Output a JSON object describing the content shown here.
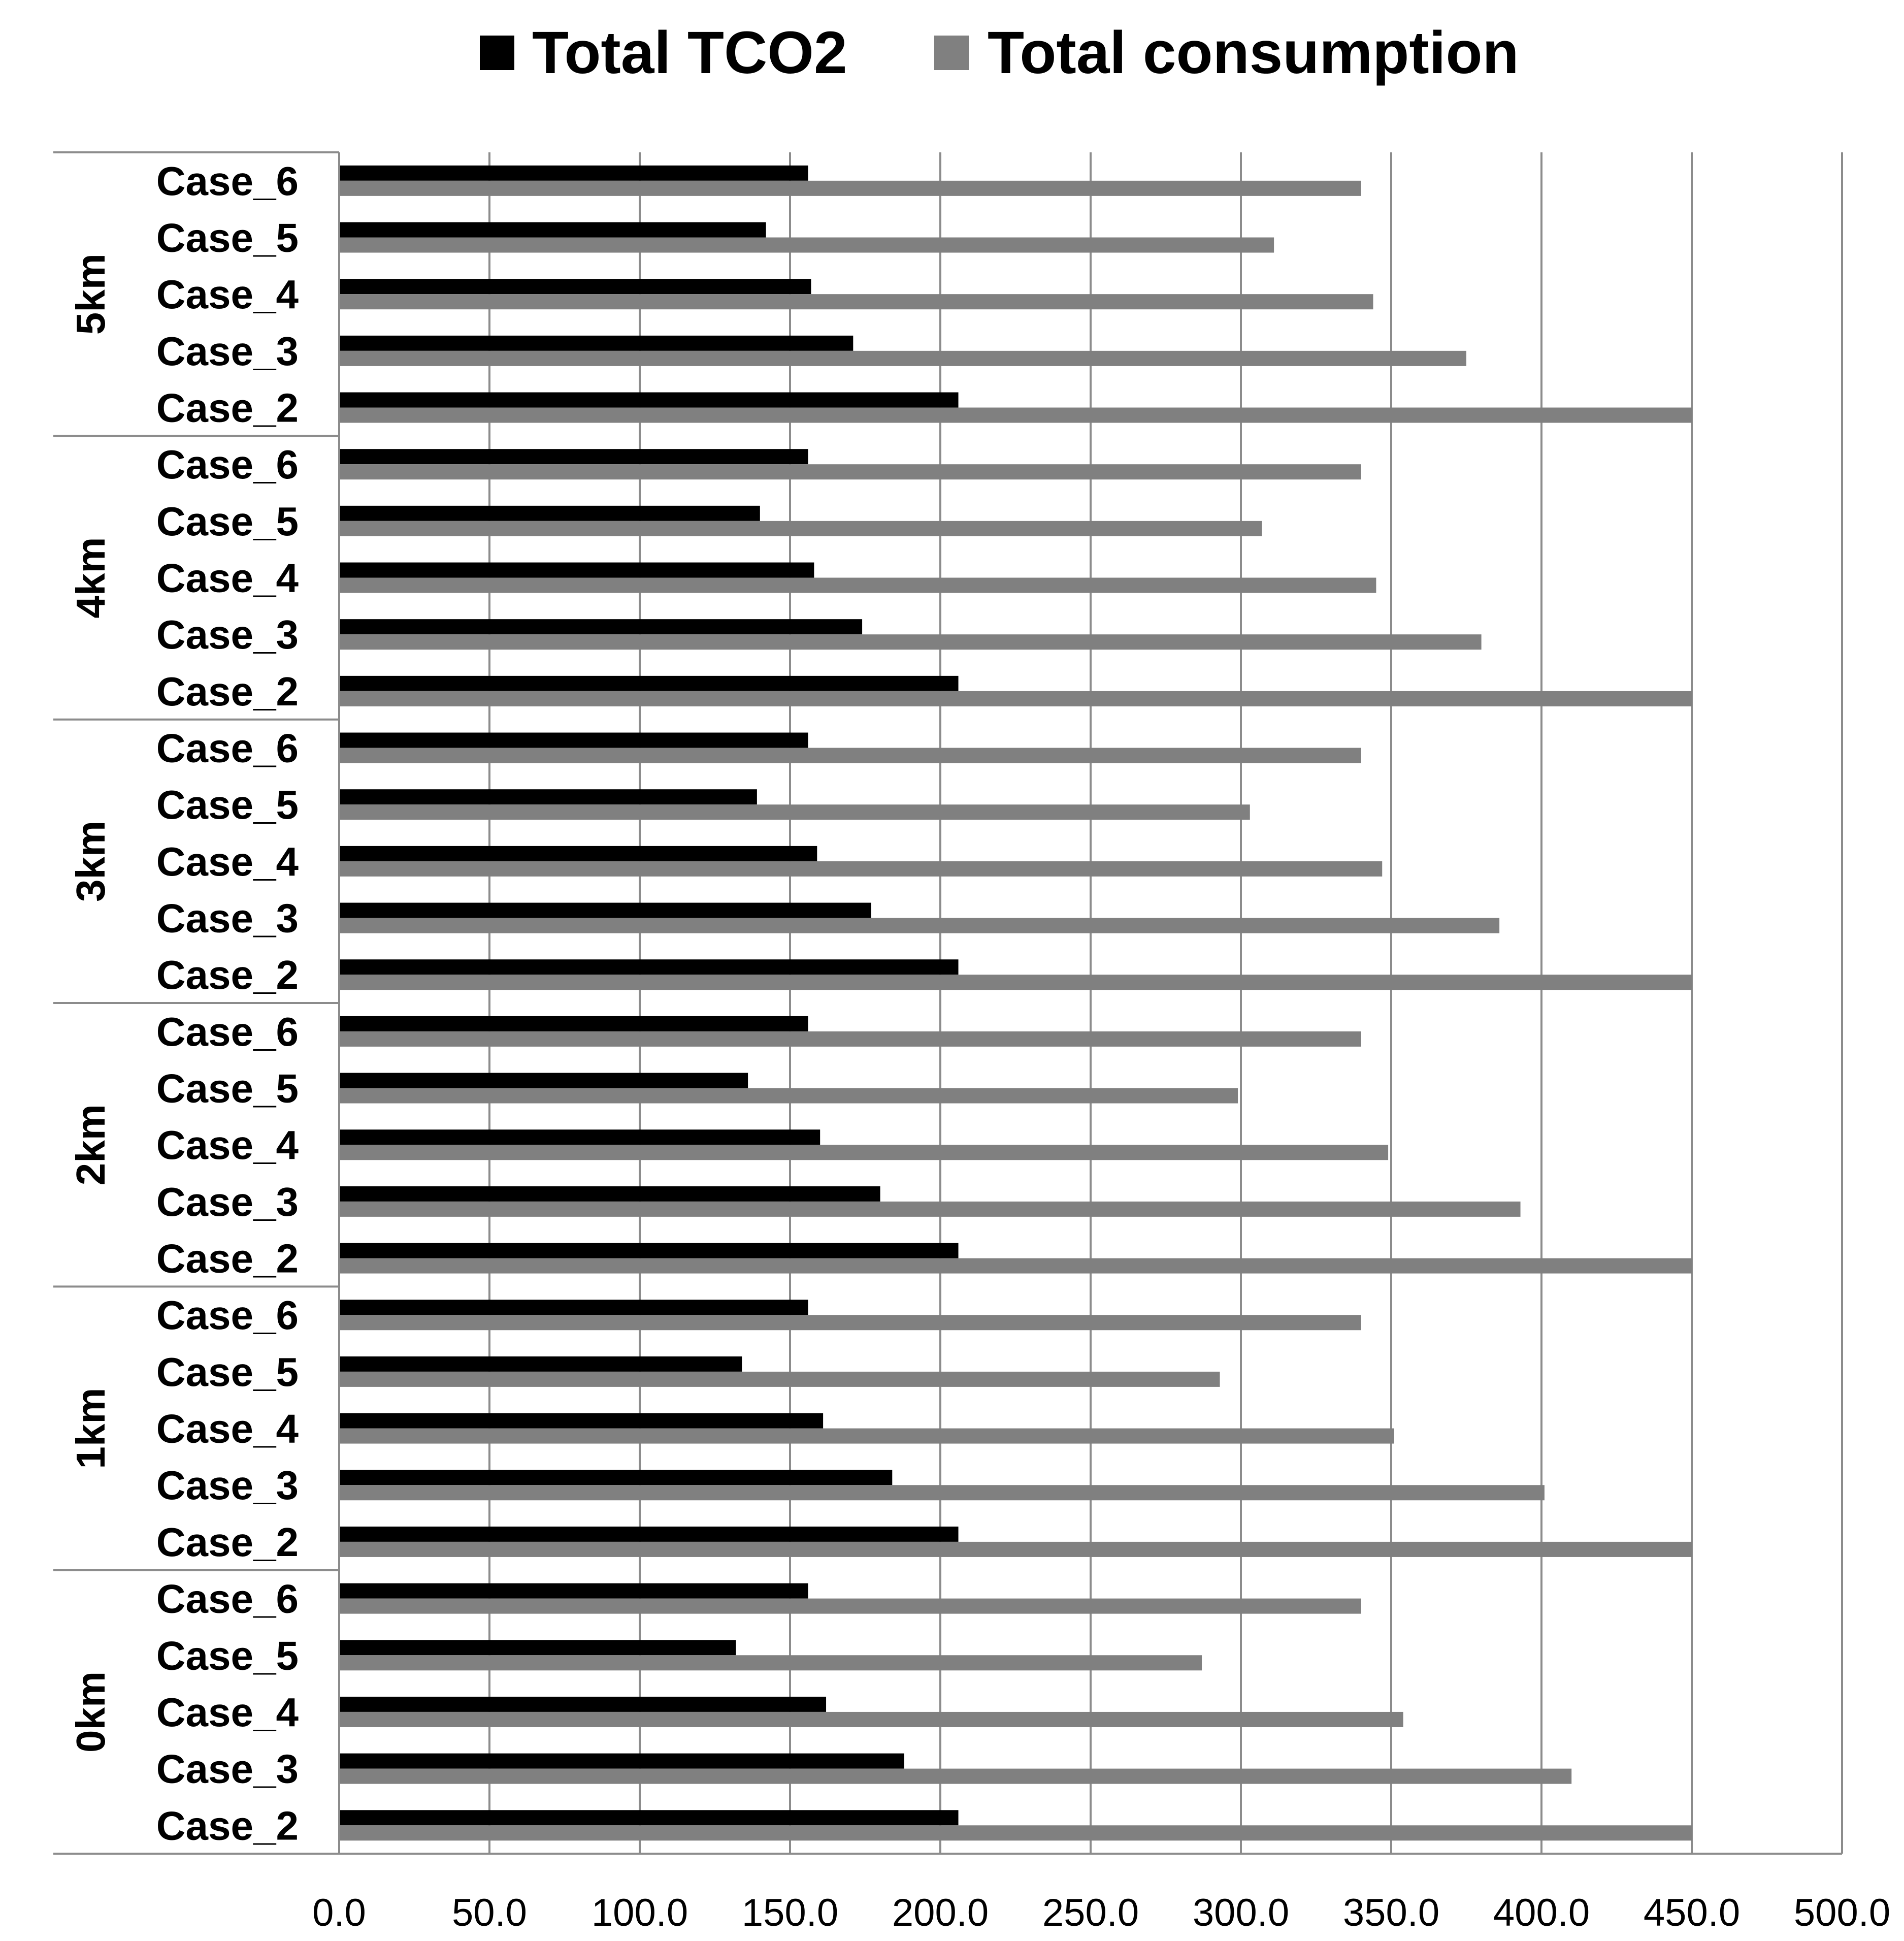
{
  "chart_data": {
    "type": "bar",
    "orientation": "horizontal",
    "title": "",
    "xlabel": "",
    "ylabel": "",
    "xlim": [
      0,
      500
    ],
    "x_ticks": [
      "0.0",
      "50.0",
      "100.0",
      "150.0",
      "200.0",
      "250.0",
      "300.0",
      "350.0",
      "400.0",
      "450.0",
      "500.0"
    ],
    "grid": "vertical",
    "legend_position": "top-center",
    "series": [
      {
        "name": "Total TCO2",
        "color": "#000000"
      },
      {
        "name": "Total consumption",
        "color": "#808080"
      }
    ],
    "groups": [
      {
        "label": "5km",
        "cases": [
          {
            "label": "Case_6",
            "values": [
              156,
              340
            ]
          },
          {
            "label": "Case_5",
            "values": [
              142,
              311
            ]
          },
          {
            "label": "Case_4",
            "values": [
              157,
              344
            ]
          },
          {
            "label": "Case_3",
            "values": [
              171,
              375
            ]
          },
          {
            "label": "Case_2",
            "values": [
              206,
              450
            ]
          }
        ]
      },
      {
        "label": "4km",
        "cases": [
          {
            "label": "Case_6",
            "values": [
              156,
              340
            ]
          },
          {
            "label": "Case_5",
            "values": [
              140,
              307
            ]
          },
          {
            "label": "Case_4",
            "values": [
              158,
              345
            ]
          },
          {
            "label": "Case_3",
            "values": [
              174,
              380
            ]
          },
          {
            "label": "Case_2",
            "values": [
              206,
              450
            ]
          }
        ]
      },
      {
        "label": "3km",
        "cases": [
          {
            "label": "Case_6",
            "values": [
              156,
              340
            ]
          },
          {
            "label": "Case_5",
            "values": [
              139,
              303
            ]
          },
          {
            "label": "Case_4",
            "values": [
              159,
              347
            ]
          },
          {
            "label": "Case_3",
            "values": [
              177,
              386
            ]
          },
          {
            "label": "Case_2",
            "values": [
              206,
              450
            ]
          }
        ]
      },
      {
        "label": "2km",
        "cases": [
          {
            "label": "Case_6",
            "values": [
              156,
              340
            ]
          },
          {
            "label": "Case_5",
            "values": [
              136,
              299
            ]
          },
          {
            "label": "Case_4",
            "values": [
              160,
              349
            ]
          },
          {
            "label": "Case_3",
            "values": [
              180,
              393
            ]
          },
          {
            "label": "Case_2",
            "values": [
              206,
              450
            ]
          }
        ]
      },
      {
        "label": "1km",
        "cases": [
          {
            "label": "Case_6",
            "values": [
              156,
              340
            ]
          },
          {
            "label": "Case_5",
            "values": [
              134,
              293
            ]
          },
          {
            "label": "Case_4",
            "values": [
              161,
              351
            ]
          },
          {
            "label": "Case_3",
            "values": [
              184,
              401
            ]
          },
          {
            "label": "Case_2",
            "values": [
              206,
              450
            ]
          }
        ]
      },
      {
        "label": "0km",
        "cases": [
          {
            "label": "Case_6",
            "values": [
              156,
              340
            ]
          },
          {
            "label": "Case_5",
            "values": [
              132,
              287
            ]
          },
          {
            "label": "Case_4",
            "values": [
              162,
              354
            ]
          },
          {
            "label": "Case_3",
            "values": [
              188,
              410
            ]
          },
          {
            "label": "Case_2",
            "values": [
              206,
              450
            ]
          }
        ]
      }
    ]
  }
}
